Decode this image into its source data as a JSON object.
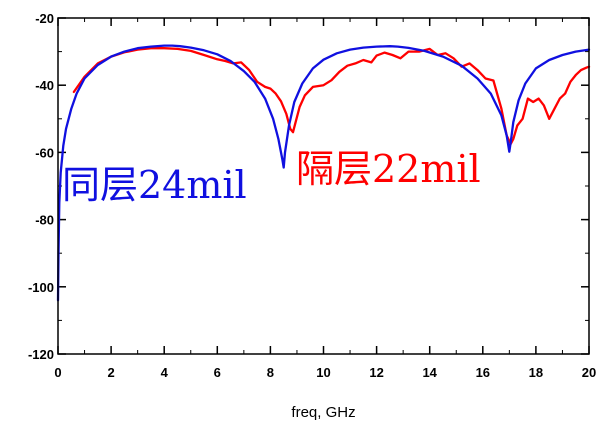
{
  "chart_data": {
    "type": "line",
    "title": "",
    "xlabel": "freq, GHz",
    "ylabel": "",
    "xlim": [
      0,
      20
    ],
    "ylim": [
      -120,
      -20
    ],
    "x_ticks": [
      0,
      2,
      4,
      6,
      8,
      10,
      12,
      14,
      16,
      18,
      20
    ],
    "y_ticks": [
      -20,
      -40,
      -60,
      -80,
      -100,
      -120
    ],
    "x_minor_step": 1,
    "y_minor_step": 10,
    "grid": false,
    "legend": "none",
    "series": [
      {
        "color": "#1010e0",
        "x": [
          0,
          0.02,
          0.05,
          0.1,
          0.2,
          0.3,
          0.5,
          0.7,
          1,
          1.5,
          2,
          2.5,
          3,
          3.5,
          4,
          4.3,
          4.6,
          5,
          5.5,
          6,
          6.5,
          7,
          7.4,
          7.8,
          8.1,
          8.3,
          8.45,
          8.5,
          8.55,
          8.7,
          8.9,
          9.2,
          9.6,
          10,
          10.5,
          11,
          11.5,
          12,
          12.5,
          12.8,
          13.2,
          13.8,
          14.5,
          15.2,
          15.8,
          16.3,
          16.7,
          16.9,
          17,
          17.05,
          17.15,
          17.35,
          17.6,
          18,
          18.5,
          19,
          19.5,
          20
        ],
        "y": [
          -104,
          -90,
          -75,
          -66,
          -58,
          -53,
          -47,
          -42.5,
          -38,
          -34,
          -31.5,
          -30,
          -29,
          -28.5,
          -28.2,
          -28.2,
          -28.4,
          -28.8,
          -29.6,
          -30.8,
          -32.8,
          -35.8,
          -39,
          -44,
          -50,
          -56,
          -62,
          -64.5,
          -60,
          -52,
          -45,
          -39.5,
          -35,
          -32.4,
          -30.5,
          -29.4,
          -28.8,
          -28.5,
          -28.4,
          -28.5,
          -28.9,
          -29.8,
          -31.5,
          -34.2,
          -38,
          -42.5,
          -49,
          -55,
          -59.8,
          -57,
          -51,
          -44.5,
          -39.5,
          -35,
          -32.5,
          -31,
          -30,
          -29.4
        ]
      },
      {
        "color": "#ff0000",
        "x": [
          0.6,
          1,
          1.5,
          2,
          2.5,
          3,
          3.5,
          4,
          4.5,
          5,
          5.5,
          6,
          6.3,
          6.6,
          6.9,
          7.2,
          7.5,
          7.8,
          8,
          8.2,
          8.4,
          8.6,
          8.75,
          8.85,
          8.95,
          9.1,
          9.3,
          9.6,
          10,
          10.3,
          10.6,
          10.9,
          11.2,
          11.5,
          11.8,
          12,
          12.3,
          12.6,
          12.9,
          13.2,
          13.6,
          14,
          14.3,
          14.6,
          14.9,
          15.2,
          15.5,
          15.8,
          16.1,
          16.4,
          16.7,
          16.9,
          17.05,
          17.15,
          17.3,
          17.5,
          17.7,
          17.9,
          18.1,
          18.3,
          18.5,
          18.7,
          18.9,
          19.1,
          19.3,
          19.5,
          19.7,
          19.9,
          20
        ],
        "y": [
          -42,
          -37.5,
          -33.5,
          -31.5,
          -30.2,
          -29.4,
          -29,
          -29,
          -29.2,
          -29.8,
          -31,
          -32.3,
          -32.8,
          -33.5,
          -33.2,
          -35.5,
          -39,
          -40.5,
          -41,
          -42.5,
          -44.8,
          -48.5,
          -53,
          -54,
          -51,
          -46.5,
          -43,
          -40.5,
          -40,
          -38.5,
          -36,
          -34.2,
          -33.5,
          -32.5,
          -33.2,
          -31.2,
          -30.3,
          -31,
          -32,
          -30,
          -30,
          -29.2,
          -31,
          -30.5,
          -32,
          -34.5,
          -33.5,
          -35.5,
          -38,
          -38.6,
          -47,
          -55,
          -57.5,
          -56,
          -52,
          -50,
          -44,
          -45,
          -44,
          -46,
          -50,
          -47,
          -44,
          -42.5,
          -39,
          -37,
          -35.5,
          -34.8,
          -34.5
        ]
      }
    ],
    "annotations": [
      {
        "text": "同层24mil",
        "color": "#1010e0"
      },
      {
        "text": "隔层22mil",
        "color": "#ff0000"
      }
    ]
  }
}
